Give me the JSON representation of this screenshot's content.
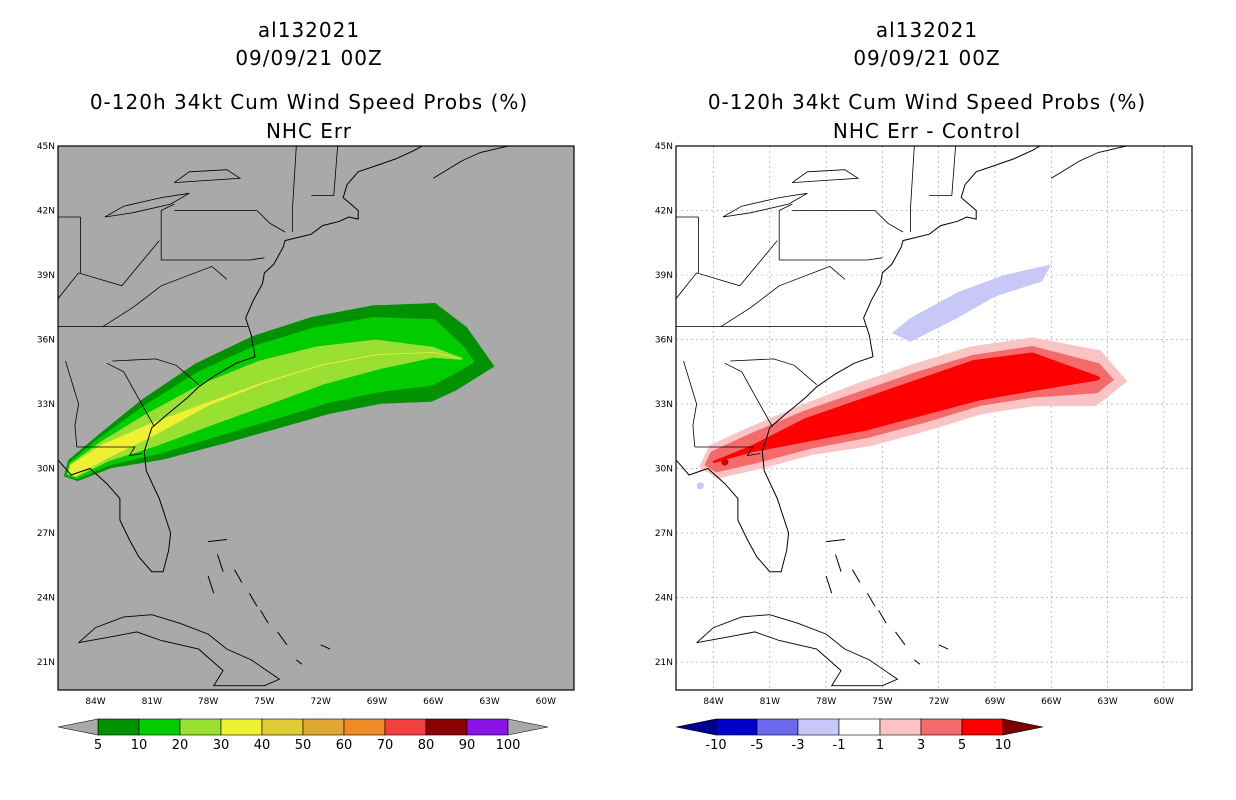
{
  "left_panel": {
    "storm_id": "al132021",
    "datetime": "09/09/21 00Z",
    "product": "0-120h 34kt Cum Wind Speed Probs (%)",
    "subtitle": "NHC Err",
    "background": "#a9a9a9",
    "colorbar": {
      "labels": [
        "5",
        "10",
        "20",
        "30",
        "40",
        "50",
        "60",
        "70",
        "80",
        "90",
        "100"
      ],
      "colors": [
        "#019101",
        "#00cc00",
        "#99e033",
        "#f0f033",
        "#e0cc33",
        "#e0a833",
        "#f08b28",
        "#f24040",
        "#8b0000",
        "#8a13e6"
      ],
      "arrow_color": "#a9a9a9"
    }
  },
  "right_panel": {
    "storm_id": "al132021",
    "datetime": "09/09/21 00Z",
    "product": "0-120h 34kt Cum Wind Speed Probs (%)",
    "subtitle": "NHC Err - Control",
    "background": "#ffffff",
    "colorbar": {
      "labels": [
        "-10",
        "-5",
        "-3",
        "-1",
        "1",
        "3",
        "5",
        "10"
      ],
      "colors": [
        "#0000cc",
        "#6a6aee",
        "#c8c8f8",
        "#ffffff",
        "#fbc4c4",
        "#f56a6a",
        "#ff0000"
      ],
      "left_arrow_color": "#000090",
      "right_arrow_color": "#7a0000"
    }
  },
  "map": {
    "lat_labels": [
      "45N",
      "42N",
      "39N",
      "36N",
      "33N",
      "30N",
      "27N",
      "24N",
      "21N"
    ],
    "lon_labels": [
      "84W",
      "81W",
      "78W",
      "75W",
      "72W",
      "69W",
      "66W",
      "63W",
      "60W"
    ],
    "lat_range": [
      19.7,
      45
    ],
    "lon_range": [
      -86,
      -58.5
    ]
  },
  "prob_field": {
    "axis": [
      [
        -85.2,
        29.9
      ],
      [
        -83.5,
        30.8
      ],
      [
        -81.0,
        31.8
      ],
      [
        -78.0,
        33.0
      ],
      [
        -75.0,
        34.0
      ],
      [
        -72.0,
        34.8
      ],
      [
        -69.0,
        35.3
      ],
      [
        -66.0,
        35.4
      ],
      [
        -64.5,
        35.1
      ]
    ],
    "contours": [
      {
        "level": "5",
        "color": "#019101",
        "halfwidth": [
          0.55,
          0.85,
          1.5,
          2.0,
          2.25,
          2.3,
          2.3,
          2.3,
          1.5
        ]
      },
      {
        "level": "10",
        "color": "#00cc00",
        "halfwidth": [
          0.45,
          0.7,
          1.2,
          1.6,
          1.8,
          1.8,
          1.75,
          1.55,
          0.6
        ]
      },
      {
        "level": "20",
        "color": "#99e033",
        "halfwidth": [
          0.35,
          0.5,
          0.8,
          1.0,
          1.05,
          0.9,
          0.7,
          0.25,
          0.05
        ]
      },
      {
        "level": "30",
        "color": "#f0f033",
        "halfwidth": [
          0.3,
          0.35,
          0.3,
          0.08,
          0.03,
          0.02,
          0.02,
          0.02,
          0.01
        ]
      }
    ]
  },
  "diff_field": {
    "axis": [
      [
        -84.0,
        30.3
      ],
      [
        -82.0,
        30.9
      ],
      [
        -79.0,
        31.8
      ],
      [
        -76.0,
        32.5
      ],
      [
        -73.0,
        33.3
      ],
      [
        -70.0,
        34.1
      ],
      [
        -67.0,
        34.5
      ],
      [
        -63.5,
        34.2
      ]
    ],
    "contours": [
      {
        "level": "1",
        "color": "#fbc4c4",
        "halfwidth": [
          0.8,
          1.0,
          1.2,
          1.5,
          1.6,
          1.6,
          1.6,
          1.3
        ]
      },
      {
        "level": "3",
        "color": "#f56a6a",
        "halfwidth": [
          0.5,
          0.7,
          0.9,
          1.1,
          1.2,
          1.2,
          1.2,
          0.7
        ]
      },
      {
        "level": "5",
        "color": "#ff0000",
        "halfwidth": [
          0.05,
          0.15,
          0.55,
          0.75,
          0.85,
          0.95,
          0.9,
          0.1
        ]
      }
    ],
    "negative_patches": [
      {
        "level": "-1",
        "color": "#c8c8f8",
        "points": [
          [
            -74.5,
            36.3
          ],
          [
            -73.5,
            37.0
          ],
          [
            -71.0,
            38.2
          ],
          [
            -68.5,
            39.0
          ],
          [
            -66.0,
            39.5
          ],
          [
            -66.5,
            38.7
          ],
          [
            -69.0,
            38.0
          ],
          [
            -71.0,
            37.0
          ],
          [
            -73.5,
            35.9
          ]
        ]
      }
    ],
    "small_spots": [
      {
        "level": "10",
        "color": "#cc0000",
        "lon": -83.4,
        "lat": 30.3
      },
      {
        "level": "-1",
        "color": "#c8c8f8",
        "lon": -84.7,
        "lat": 29.2
      }
    ]
  }
}
